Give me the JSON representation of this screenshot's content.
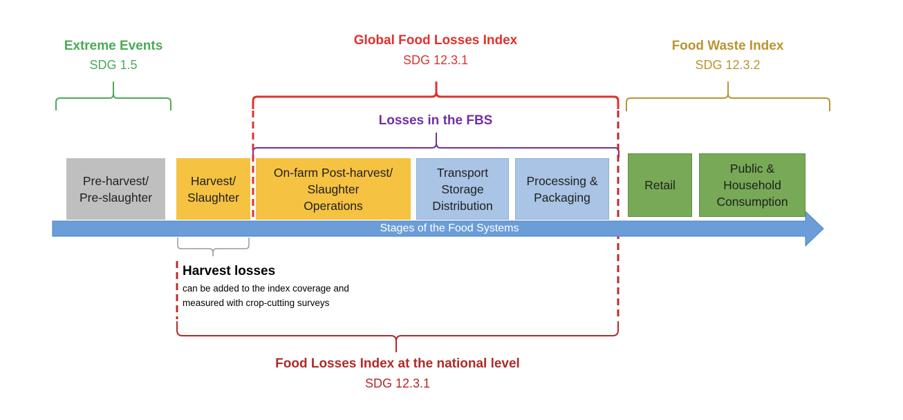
{
  "headers": {
    "extreme_events": {
      "title": "Extreme Events",
      "sdg": "SDG 1.5",
      "color": "#4aaa57"
    },
    "global_food_losses": {
      "title": "Global Food Losses Index",
      "sdg": "SDG 12.3.1",
      "color": "#e0312d"
    },
    "food_waste": {
      "title": "Food Waste Index",
      "sdg": "SDG 12.3.2",
      "color": "#b8952f"
    },
    "losses_fbs": {
      "title": "Losses in the FBS",
      "color": "#7030a0"
    }
  },
  "stages": {
    "pre_harvest": {
      "label": "Pre-harvest/\nPre-slaughter",
      "color": "#bfbfbf"
    },
    "harvest": {
      "label": "Harvest/\nSlaughter",
      "color": "#f5c242"
    },
    "on_farm": {
      "label": "On-farm Post-harvest/\nSlaughter\nOperations",
      "color": "#f5c242"
    },
    "transport": {
      "label": "Transport\nStorage\nDistribution",
      "color": "#a9c4e4"
    },
    "processing": {
      "label": "Processing &\nPackaging",
      "color": "#a9c4e4"
    },
    "retail": {
      "label": "Retail",
      "color": "#77a956"
    },
    "consumption": {
      "label": "Public &\nHousehold\nConsumption",
      "color": "#77a956"
    }
  },
  "arrow": {
    "label": "Stages of the Food Systems",
    "color": "#6b9ed8"
  },
  "harvest_losses": {
    "title": "Harvest losses",
    "line1": "can be added to the index coverage and",
    "line2": "measured with crop-cutting surveys"
  },
  "national": {
    "title": "Food Losses Index at the national level",
    "sdg": "SDG 12.3.1",
    "color": "#b02a28"
  }
}
